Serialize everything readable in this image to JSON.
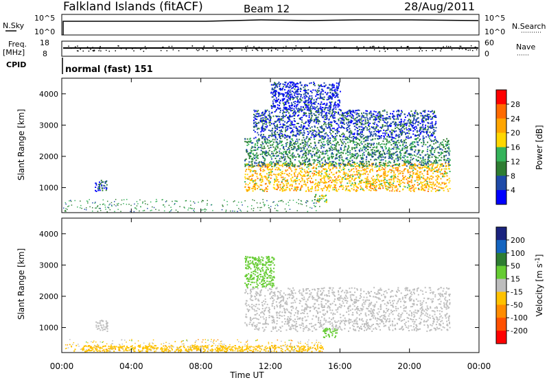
{
  "header": {
    "station": "Falkland Islands (fitACF)",
    "beam": "Beam 12",
    "date": "28/Aug/2011"
  },
  "noise_panel": {
    "left_label": "N.Sky",
    "right_label": "N.Search",
    "left_ticks": [
      "10^5",
      "10^0"
    ],
    "right_ticks": [
      "10^5",
      "10^0"
    ]
  },
  "freq_panel": {
    "left_label_1": "Freq.",
    "left_label_2": "[MHz]",
    "right_label": "Nave",
    "left_ticks": [
      "18",
      "8"
    ],
    "right_ticks": [
      "60",
      "0"
    ]
  },
  "cpid_panel": {
    "label": "CPID",
    "mode_text": "normal (fast) 151"
  },
  "power_colorbar": {
    "label": "Power [dB]",
    "ticks": [
      "28",
      "24",
      "20",
      "16",
      "12",
      "8",
      "4"
    ],
    "colors": [
      "#ff0000",
      "#ff6a00",
      "#ffa500",
      "#ffd700",
      "#34b35a",
      "#2e7d32",
      "#1f4aa8",
      "#0000ff"
    ]
  },
  "velocity_colorbar": {
    "label": "Velocity [m s^-1]",
    "ticks": [
      "200",
      "100",
      "50",
      "15",
      "-15",
      "-50",
      "-100",
      "-200"
    ],
    "colors": [
      "#1a237e",
      "#1565c0",
      "#2e7d32",
      "#66cc33",
      "#bdbdbd",
      "#ffc200",
      "#ff8c00",
      "#ff5000",
      "#ff0000"
    ]
  },
  "axes": {
    "ylabel": "Slant Range [km]",
    "xlabel": "Time UT",
    "yticks": [
      "4000",
      "3000",
      "2000",
      "1000"
    ],
    "xticks": [
      "00:00",
      "04:00",
      "08:00",
      "12:00",
      "16:00",
      "20:00",
      "00:00"
    ]
  },
  "chart_data": [
    {
      "type": "heatmap",
      "title": "Power",
      "ylabel": "Slant Range [km]",
      "xlabel": "",
      "xlim": [
        0,
        24
      ],
      "ylim": [
        200,
        4500
      ],
      "regions": [
        {
          "x": [
            1.9,
            2.6
          ],
          "y": [
            900,
            1250
          ],
          "value": 6
        },
        {
          "x": [
            10.5,
            22.3
          ],
          "y": [
            900,
            1800
          ],
          "value": 20
        },
        {
          "x": [
            10.5,
            22.3
          ],
          "y": [
            1700,
            2600
          ],
          "value": 10
        },
        {
          "x": [
            11.0,
            21.5
          ],
          "y": [
            2600,
            3500
          ],
          "value": 6
        },
        {
          "x": [
            12.0,
            16.0
          ],
          "y": [
            3500,
            4400
          ],
          "value": 4
        },
        {
          "x": [
            14.5,
            15.2
          ],
          "y": [
            550,
            800
          ],
          "value": 16
        }
      ]
    },
    {
      "type": "heatmap",
      "title": "Velocity",
      "ylabel": "Slant Range [km]",
      "xlabel": "Time UT",
      "xlim": [
        0,
        24
      ],
      "ylim": [
        200,
        4500
      ],
      "regions": [
        {
          "x": [
            1.9,
            2.6
          ],
          "y": [
            900,
            1250
          ],
          "value": 0
        },
        {
          "x": [
            10.5,
            22.3
          ],
          "y": [
            900,
            2300
          ],
          "value": 0
        },
        {
          "x": [
            10.5,
            12.2
          ],
          "y": [
            2300,
            3300
          ],
          "value": 30
        },
        {
          "x": [
            15.0,
            15.8
          ],
          "y": [
            700,
            1000
          ],
          "value": 30
        },
        {
          "x": [
            0.5,
            15.0
          ],
          "y": [
            250,
            450
          ],
          "value": -40
        }
      ]
    }
  ]
}
